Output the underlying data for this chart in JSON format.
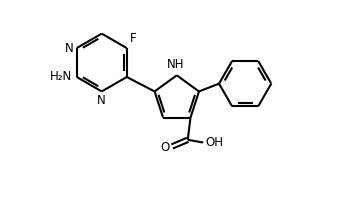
{
  "bg_color": "#ffffff",
  "line_color": "#000000",
  "line_width": 1.5,
  "font_size_label": 8.5,
  "fig_width": 3.48,
  "fig_height": 2.14,
  "xlim": [
    -1.5,
    3.5
  ],
  "ylim": [
    -1.6,
    2.2
  ]
}
